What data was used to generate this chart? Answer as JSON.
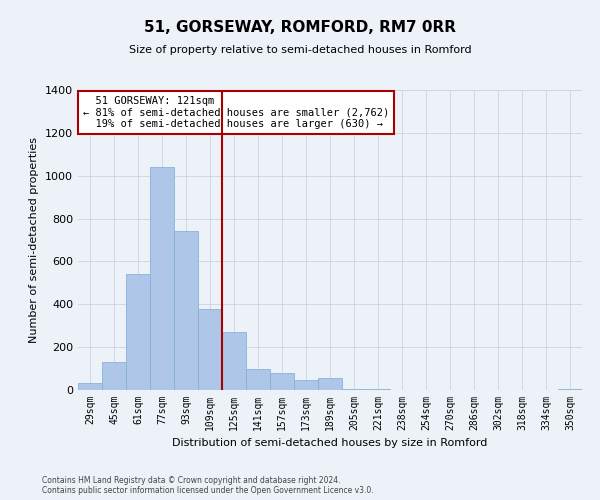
{
  "title": "51, GORSEWAY, ROMFORD, RM7 0RR",
  "subtitle": "Size of property relative to semi-detached houses in Romford",
  "xlabel": "Distribution of semi-detached houses by size in Romford",
  "ylabel": "Number of semi-detached properties",
  "categories": [
    "29sqm",
    "45sqm",
    "61sqm",
    "77sqm",
    "93sqm",
    "109sqm",
    "125sqm",
    "141sqm",
    "157sqm",
    "173sqm",
    "189sqm",
    "205sqm",
    "221sqm",
    "238sqm",
    "254sqm",
    "270sqm",
    "286sqm",
    "302sqm",
    "318sqm",
    "334sqm",
    "350sqm"
  ],
  "values": [
    35,
    130,
    540,
    1040,
    740,
    380,
    270,
    100,
    80,
    45,
    55,
    5,
    5,
    0,
    0,
    0,
    0,
    0,
    0,
    0,
    5
  ],
  "bar_color": "#aec6e8",
  "bar_edge_color": "#7aadd4",
  "property_sqm": 121,
  "vline_bin_index": 5,
  "property_label": "51 GORSEWAY: 121sqm",
  "pct_smaller": 81,
  "pct_larger": 19,
  "n_smaller": 2762,
  "n_larger": 630,
  "vline_color": "#aa0000",
  "ylim": [
    0,
    1400
  ],
  "yticks": [
    0,
    200,
    400,
    600,
    800,
    1000,
    1200,
    1400
  ],
  "grid_color": "#c8d4e4",
  "footer_line1": "Contains HM Land Registry data © Crown copyright and database right 2024.",
  "footer_line2": "Contains public sector information licensed under the Open Government Licence v3.0.",
  "bg_color": "#edf1f8"
}
